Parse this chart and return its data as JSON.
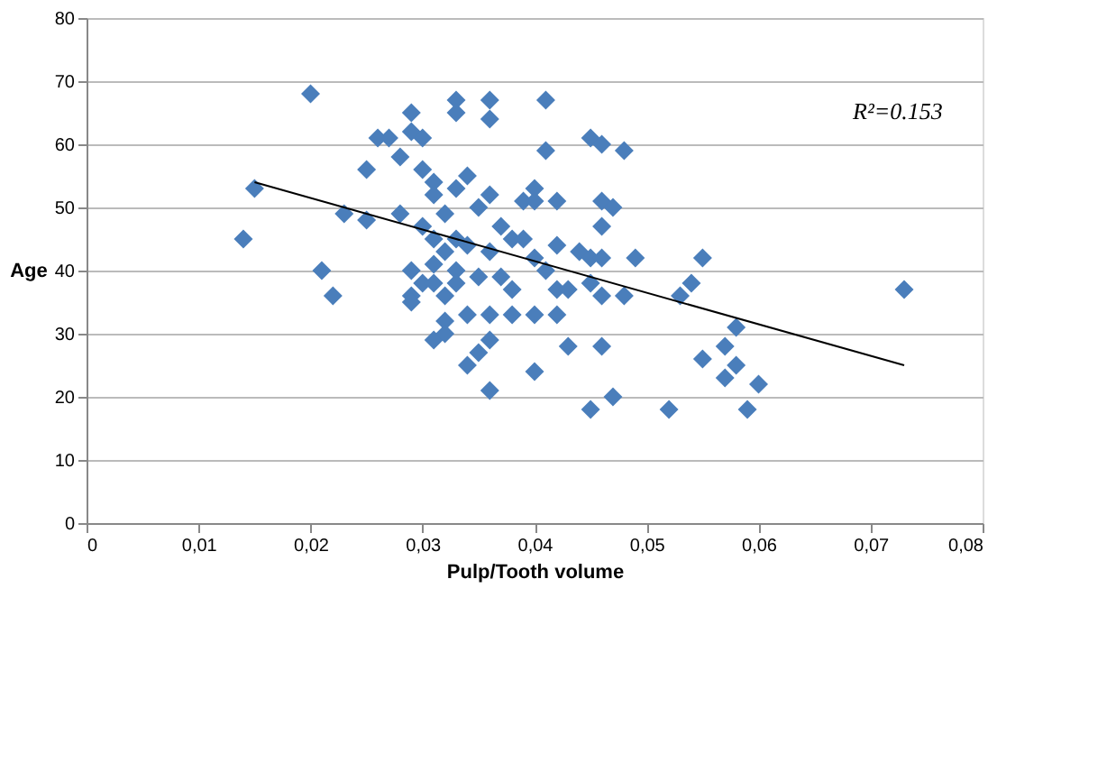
{
  "chart_data": {
    "type": "scatter",
    "xlabel": "Pulp/Tooth volume",
    "ylabel": "Age",
    "xlim": [
      0,
      0.08
    ],
    "ylim": [
      0,
      80
    ],
    "xticks": [
      {
        "value": 0,
        "label": "0"
      },
      {
        "value": 0.01,
        "label": "0,01"
      },
      {
        "value": 0.02,
        "label": "0,02"
      },
      {
        "value": 0.03,
        "label": "0,03"
      },
      {
        "value": 0.04,
        "label": "0,04"
      },
      {
        "value": 0.05,
        "label": "0,05"
      },
      {
        "value": 0.06,
        "label": "0,06"
      },
      {
        "value": 0.07,
        "label": "0,07"
      },
      {
        "value": 0.08,
        "label": "0,08"
      }
    ],
    "yticks": [
      0,
      10,
      20,
      30,
      40,
      50,
      60,
      70,
      80
    ],
    "grid": "y",
    "annotations": [
      "R²=0.153"
    ],
    "series": [
      {
        "marker": "diamond",
        "color": "#4a7ebb",
        "x": [
          0.014,
          0.015,
          0.02,
          0.021,
          0.022,
          0.023,
          0.025,
          0.025,
          0.026,
          0.027,
          0.028,
          0.028,
          0.029,
          0.029,
          0.029,
          0.029,
          0.029,
          0.03,
          0.03,
          0.03,
          0.03,
          0.031,
          0.031,
          0.031,
          0.031,
          0.031,
          0.031,
          0.032,
          0.032,
          0.032,
          0.032,
          0.032,
          0.033,
          0.033,
          0.033,
          0.033,
          0.033,
          0.033,
          0.034,
          0.034,
          0.034,
          0.034,
          0.035,
          0.035,
          0.035,
          0.036,
          0.036,
          0.036,
          0.036,
          0.036,
          0.036,
          0.036,
          0.037,
          0.037,
          0.038,
          0.038,
          0.038,
          0.039,
          0.039,
          0.04,
          0.04,
          0.04,
          0.04,
          0.04,
          0.041,
          0.041,
          0.041,
          0.042,
          0.042,
          0.042,
          0.042,
          0.043,
          0.043,
          0.044,
          0.045,
          0.045,
          0.045,
          0.045,
          0.046,
          0.046,
          0.046,
          0.046,
          0.046,
          0.046,
          0.047,
          0.047,
          0.048,
          0.048,
          0.049,
          0.052,
          0.053,
          0.054,
          0.055,
          0.055,
          0.057,
          0.057,
          0.058,
          0.058,
          0.059,
          0.06,
          0.073
        ],
        "values": [
          45,
          53,
          68,
          40,
          36,
          49,
          48,
          56,
          61,
          61,
          58,
          49,
          65,
          62,
          40,
          36,
          35,
          61,
          56,
          47,
          38,
          54,
          52,
          45,
          41,
          38,
          29,
          49,
          43,
          36,
          32,
          30,
          67,
          65,
          53,
          45,
          40,
          38,
          55,
          44,
          33,
          25,
          50,
          39,
          27,
          67,
          64,
          52,
          43,
          33,
          29,
          21,
          47,
          39,
          45,
          37,
          33,
          51,
          45,
          53,
          51,
          42,
          33,
          24,
          67,
          59,
          40,
          51,
          44,
          37,
          33,
          37,
          28,
          43,
          61,
          42,
          38,
          18,
          60,
          51,
          47,
          42,
          36,
          28,
          50,
          20,
          59,
          36,
          42,
          18,
          36,
          38,
          42,
          26,
          28,
          23,
          25,
          31,
          18,
          22,
          37
        ]
      },
      {
        "type": "line",
        "color": "#000000",
        "line_style": "solid",
        "x": [
          0.015,
          0.073
        ],
        "values": [
          54,
          25
        ]
      }
    ]
  }
}
